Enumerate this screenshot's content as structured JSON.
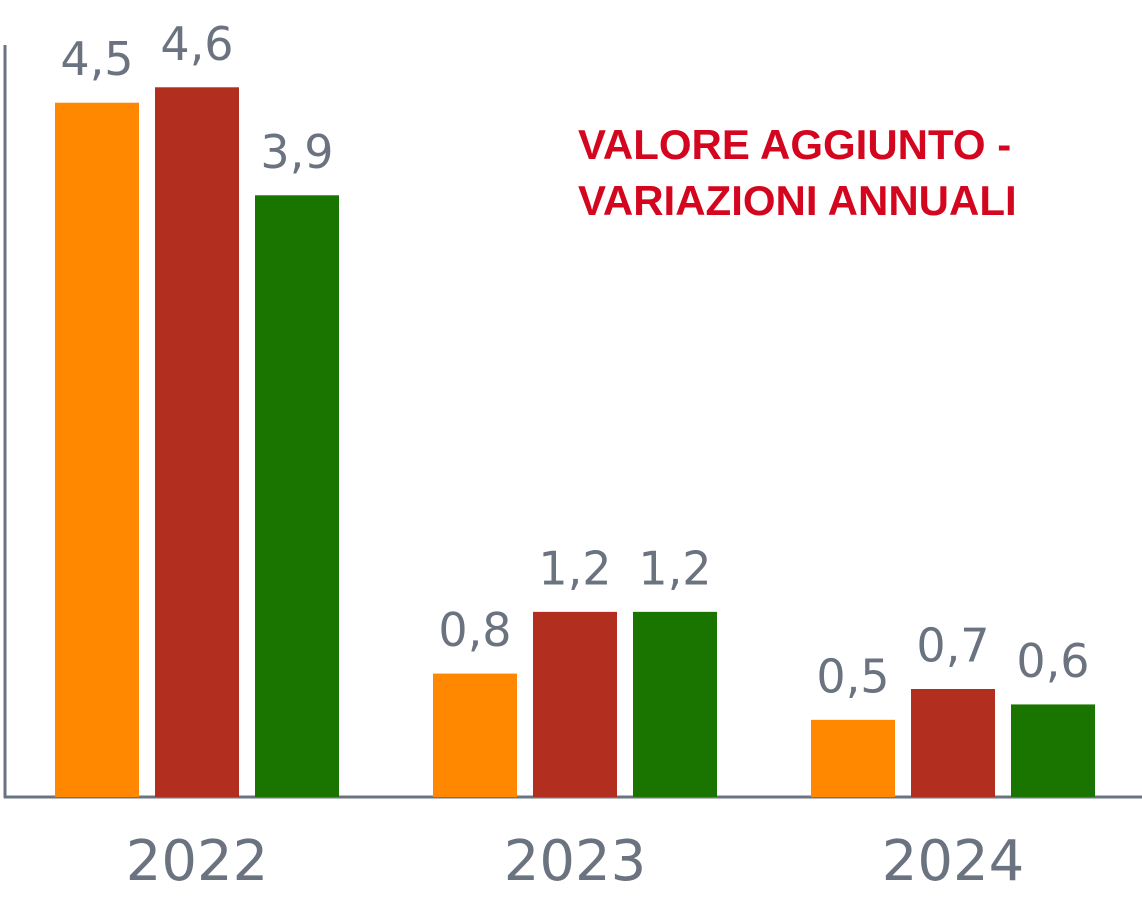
{
  "chart_data": {
    "type": "bar",
    "title": [
      "VALORE AGGIUNTO -",
      "VARIAZIONI ANNUALI"
    ],
    "categories": [
      "2022",
      "2023",
      "2024"
    ],
    "series": [
      {
        "color": "#ff8800",
        "values": [
          4.5,
          0.8,
          0.5
        ],
        "value_labels": [
          "4,5",
          "0,8",
          "0,5"
        ]
      },
      {
        "color": "#b22e1e",
        "values": [
          4.6,
          1.2,
          0.7
        ],
        "value_labels": [
          "4,6",
          "1,2",
          "0,7"
        ]
      },
      {
        "color": "#1a7400",
        "values": [
          3.9,
          1.2,
          0.6
        ],
        "value_labels": [
          "3,9",
          "1,2",
          "0,6"
        ]
      }
    ],
    "ylim": [
      0,
      4.9
    ]
  }
}
